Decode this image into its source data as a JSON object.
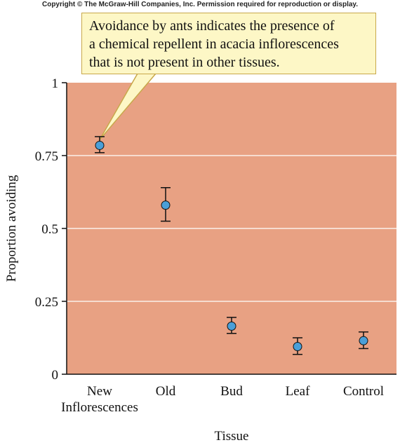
{
  "copyright": "Copyright © The McGraw-Hill Companies, Inc. Permission required for reproduction or display.",
  "callout": {
    "lines": [
      "Avoidance by ants indicates the presence of",
      "a chemical repellent in acacia inflorescences",
      "that is not present in other tissues."
    ]
  },
  "colors": {
    "plot_bg": "#e8a183",
    "point_fill": "#4a9fd8",
    "callout_bg": "#fdf7c6",
    "callout_border": "#c8a84a"
  },
  "chart_data": {
    "type": "scatter",
    "title": "",
    "xlabel": "Tissue",
    "ylabel": "Proportion avoiding",
    "categories": [
      [
        "New",
        "Inflorescences"
      ],
      [
        "Old"
      ],
      [
        "Bud"
      ],
      [
        "Leaf"
      ],
      [
        "Control"
      ]
    ],
    "values": [
      0.785,
      0.58,
      0.165,
      0.095,
      0.115
    ],
    "error_low": [
      0.76,
      0.525,
      0.14,
      0.068,
      0.088
    ],
    "error_high": [
      0.815,
      0.64,
      0.195,
      0.125,
      0.145
    ],
    "ylim": [
      0,
      1
    ],
    "yticks": [
      0,
      0.25,
      0.5,
      0.75,
      1
    ],
    "ytick_labels": [
      "0",
      "0.25",
      "0.5",
      "0.75",
      "1"
    ],
    "grid": true,
    "annotation_target_index": 0
  }
}
